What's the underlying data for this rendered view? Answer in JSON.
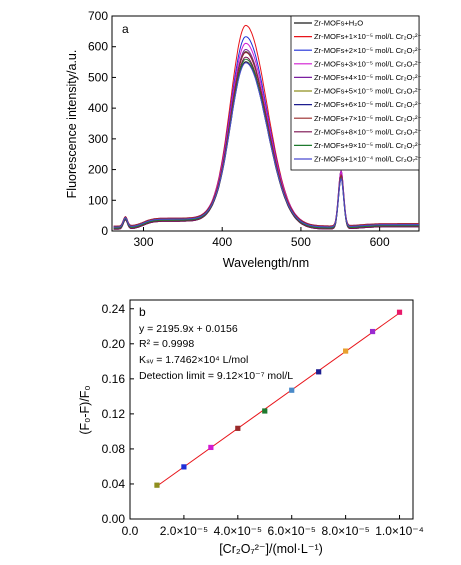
{
  "chart_data": [
    {
      "type": "line",
      "panel_label": "a",
      "xlabel": "Wavelength/nm",
      "ylabel": "Fluorescence intensity/a.u.",
      "xlim": [
        260,
        650
      ],
      "ylim": [
        0,
        700
      ],
      "x_ticks": [
        300,
        400,
        500,
        600
      ],
      "y_ticks": [
        0,
        100,
        200,
        300,
        400,
        500,
        600,
        700
      ],
      "grid": false,
      "legend_position": "top-right",
      "curve_model": {
        "base_peak_nm": 430,
        "secondary_peak_nm": 551,
        "small_peak_nm": 277
      },
      "series": [
        {
          "name": "Zr-MOFs+H₂O",
          "peak": 545,
          "secondary": 190,
          "color": "#1a1a1a"
        },
        {
          "name": "Zr-MOFs+1×10⁻⁵ mol/L Cr₂O₇²⁻",
          "peak": 660,
          "secondary": 205,
          "color": "#e8141a"
        },
        {
          "name": "Zr-MOFs+2×10⁻⁵ mol/L Cr₂O₇²⁻",
          "peak": 620,
          "secondary": 200,
          "color": "#1f2fd8"
        },
        {
          "name": "Zr-MOFs+3×10⁻⁵ mol/L Cr₂O₇²⁻",
          "peak": 595,
          "secondary": 195,
          "color": "#d21bd2"
        },
        {
          "name": "Zr-MOFs+4×10⁻⁵ mol/L Cr₂O₇²⁻",
          "peak": 585,
          "secondary": 190,
          "color": "#7a1fa0"
        },
        {
          "name": "Zr-MOFs+5×10⁻⁵ mol/L Cr₂O₇²⁻",
          "peak": 575,
          "secondary": 188,
          "color": "#8f8f1e"
        },
        {
          "name": "Zr-MOFs+6×10⁻⁵ mol/L Cr₂O₇²⁻",
          "peak": 570,
          "secondary": 186,
          "color": "#1d1d8f"
        },
        {
          "name": "Zr-MOFs+7×10⁻⁵ mol/L Cr₂O₇²⁻",
          "peak": 565,
          "secondary": 184,
          "color": "#9a2a2a"
        },
        {
          "name": "Zr-MOFs+8×10⁻⁵ mol/L Cr₂O₇²⁻",
          "peak": 560,
          "secondary": 182,
          "color": "#7a0f4f"
        },
        {
          "name": "Zr-MOFs+9×10⁻⁵ mol/L Cr₂O₇²⁻",
          "peak": 550,
          "secondary": 180,
          "color": "#1e7a2e"
        },
        {
          "name": "Zr-MOFs+1×10⁻⁴ mol/L Cr₂O₇²⁻",
          "peak": 535,
          "secondary": 175,
          "color": "#4a4ad0"
        }
      ]
    },
    {
      "type": "scatter",
      "panel_label": "b",
      "xlabel": "[Cr₂O₇²⁻]/(mol·L⁻¹)",
      "ylabel": "(F₀-F)/F₀",
      "xlim": [
        0,
        0.000105
      ],
      "ylim": [
        0,
        0.25
      ],
      "x_ticks": [
        0.0,
        2e-05,
        4e-05,
        6e-05,
        8e-05,
        0.0001
      ],
      "x_tick_labels": [
        "0.0",
        "2.0×10⁻⁵",
        "4.0×10⁻⁵",
        "6.0×10⁻⁵",
        "8.0×10⁻⁵",
        "1.0×10⁻⁴"
      ],
      "y_ticks": [
        0,
        0.04,
        0.08,
        0.12,
        0.16,
        0.2,
        0.24
      ],
      "y_tick_labels": [
        "0.00",
        "0.04",
        "0.08",
        "0.12",
        "0.16",
        "0.20",
        "0.24"
      ],
      "grid": false,
      "points": [
        {
          "x": 1e-05,
          "y": 0.0386,
          "color": "#8f8f1e"
        },
        {
          "x": 2e-05,
          "y": 0.0595,
          "color": "#1f2fd8"
        },
        {
          "x": 3e-05,
          "y": 0.0817,
          "color": "#d21bd2"
        },
        {
          "x": 4e-05,
          "y": 0.1035,
          "color": "#9a2a2a"
        },
        {
          "x": 5e-05,
          "y": 0.1233,
          "color": "#1e7a2e"
        },
        {
          "x": 6e-05,
          "y": 0.147,
          "color": "#4a8ac8"
        },
        {
          "x": 7e-05,
          "y": 0.168,
          "color": "#1d1d8f"
        },
        {
          "x": 8e-05,
          "y": 0.1917,
          "color": "#e8a030"
        },
        {
          "x": 9e-05,
          "y": 0.214,
          "color": "#9a2ad0"
        },
        {
          "x": 0.0001,
          "y": 0.236,
          "color": "#e81a6a"
        }
      ],
      "fit": {
        "slope": 2195.9,
        "intercept": 0.0156,
        "color": "#e8141a"
      },
      "annotations": {
        "equation": "y = 2195.9x + 0.0156",
        "r_squared": "R² = 0.9998",
        "ksv": "Kₛᵥ = 1.7462×10⁴ L/mol",
        "detection": "Detection limit = 9.12×10⁻⁷ mol/L"
      }
    }
  ]
}
